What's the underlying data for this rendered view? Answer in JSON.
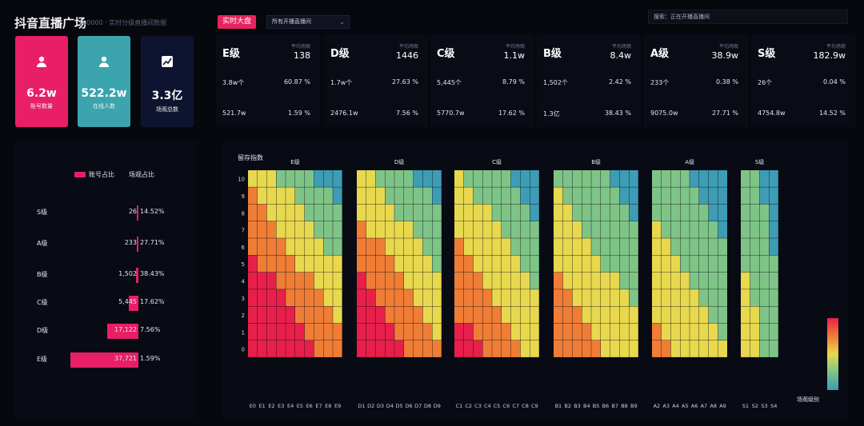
{
  "app": {
    "title": "抖音直播广场",
    "subtitle": "100000 · 实时分级直播间数据"
  },
  "toolbar": {
    "realtime_label": "实时大盘",
    "dropdown_value": "所有开播直播间",
    "search_value": "搜索：正在开播直播间"
  },
  "kpis": [
    {
      "value": "6.2w",
      "label": "账号数量",
      "icon": "user-icon"
    },
    {
      "value": "522.2w",
      "label": "在线人数",
      "icon": "user-icon"
    },
    {
      "value": "3.3亿",
      "label": "场观总数",
      "icon": "trend-chart-icon"
    }
  ],
  "levels": [
    {
      "name": "E级",
      "avg_label": "平均场观",
      "avg": "138",
      "count": "3.8w个",
      "count_pct": "60.87 %",
      "total": "521.7w",
      "total_pct": "1.59 %"
    },
    {
      "name": "D级",
      "avg_label": "平均场观",
      "avg": "1446",
      "count": "1.7w个",
      "count_pct": "27.63 %",
      "total": "2476.1w",
      "total_pct": "7.56 %"
    },
    {
      "name": "C级",
      "avg_label": "平均场观",
      "avg": "1.1w",
      "count": "5,445个",
      "count_pct": "8.79 %",
      "total": "5770.7w",
      "total_pct": "17.62 %"
    },
    {
      "name": "B级",
      "avg_label": "平均场观",
      "avg": "8.4w",
      "count": "1,502个",
      "count_pct": "2.42 %",
      "total": "1.3亿",
      "total_pct": "38.43 %"
    },
    {
      "name": "A级",
      "avg_label": "平均场观",
      "avg": "38.9w",
      "count": "233个",
      "count_pct": "0.38 %",
      "total": "9075.0w",
      "total_pct": "27.71 %"
    },
    {
      "name": "S级",
      "avg_label": "平均场观",
      "avg": "182.9w",
      "count": "26个",
      "count_pct": "0.04 %",
      "total": "4754.8w",
      "total_pct": "14.52 %"
    }
  ],
  "legend": {
    "account_share": "账号占比",
    "views_share": "场观占比"
  },
  "grade_rows": [
    {
      "name": "S级",
      "count": "26",
      "pct": "14.52%",
      "share": 0.0004
    },
    {
      "name": "A级",
      "count": "233",
      "pct": "27.71%",
      "share": 0.0038
    },
    {
      "name": "B级",
      "count": "1,502",
      "pct": "38.43%",
      "share": 0.024
    },
    {
      "name": "C级",
      "count": "5,445",
      "pct": "17.62%",
      "share": 0.088
    },
    {
      "name": "D级",
      "count": "17,122",
      "pct": "7.56%",
      "share": 0.276
    },
    {
      "name": "E级",
      "count": "37,721",
      "pct": "1.59%",
      "share": 0.609
    }
  ],
  "chart_data": {
    "type": "heatmap",
    "title": "留存指数",
    "legend_label": "场观级别",
    "y": [
      10,
      9,
      8,
      7,
      6,
      5,
      4,
      3,
      2,
      1,
      0
    ],
    "groups": [
      {
        "name": "E级",
        "x": [
          "E0",
          "E1",
          "E2",
          "E3",
          "E4",
          "E5",
          "E6",
          "E7",
          "E8",
          "E9"
        ]
      },
      {
        "name": "D级",
        "x": [
          "D1",
          "D2",
          "D3",
          "D4",
          "D5",
          "D6",
          "D7",
          "D8",
          "D9"
        ]
      },
      {
        "name": "C级",
        "x": [
          "C1",
          "C2",
          "C3",
          "C4",
          "C5",
          "C6",
          "C7",
          "C8",
          "C9"
        ]
      },
      {
        "name": "B级",
        "x": [
          "B1",
          "B2",
          "B3",
          "B4",
          "B5",
          "B6",
          "B7",
          "B8",
          "B9"
        ]
      },
      {
        "name": "A级",
        "x": [
          "A2",
          "A3",
          "A4",
          "A5",
          "A6",
          "A7",
          "A8",
          "A9"
        ]
      },
      {
        "name": "S级",
        "x": [
          "S1",
          "S2",
          "S3",
          "S4"
        ]
      }
    ],
    "color_scale": [
      "#3e9cb5",
      "#7fc487",
      "#e8d84e",
      "#f07d35",
      "#e81f4a"
    ]
  }
}
